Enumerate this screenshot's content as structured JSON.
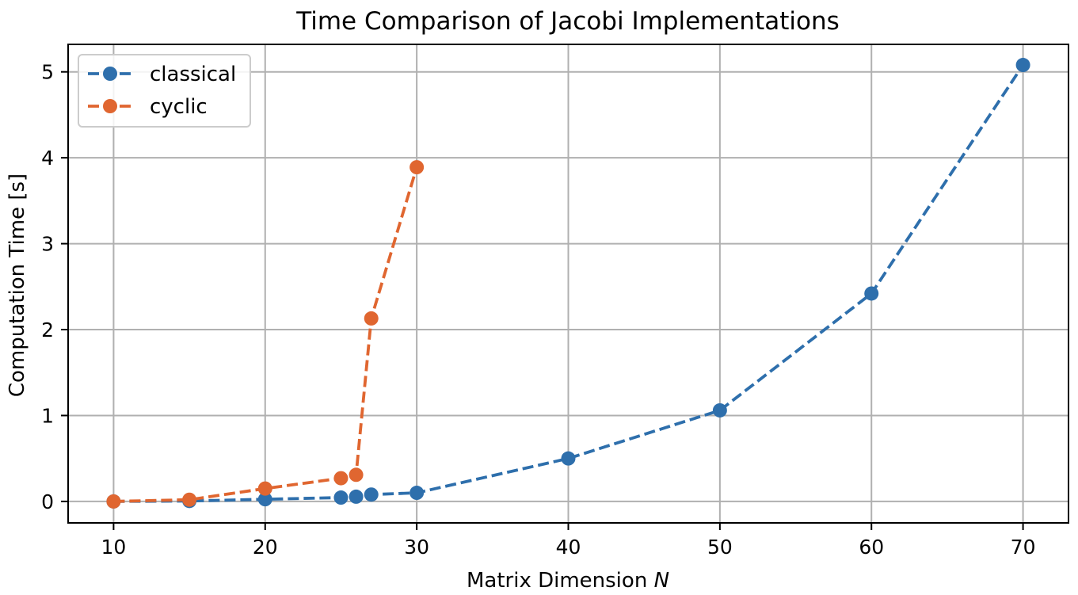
{
  "chart_data": {
    "type": "line",
    "title": "Time Comparison of Jacobi Implementations",
    "xlabel": "Matrix Dimension",
    "xlabel_symbol": "N",
    "ylabel": "Computation Time [s]",
    "xlim": [
      7,
      73
    ],
    "ylim": [
      -0.25,
      5.32
    ],
    "xticks": [
      10,
      20,
      30,
      40,
      50,
      60,
      70
    ],
    "yticks": [
      0,
      1,
      2,
      3,
      4,
      5
    ],
    "grid": true,
    "legend_position": "upper-left",
    "series": [
      {
        "name": "classical",
        "color": "#2e6fac",
        "linestyle": "dashed",
        "marker": "circle",
        "x": [
          10,
          15,
          20,
          25,
          26,
          27,
          30,
          40,
          50,
          60,
          70
        ],
        "y": [
          0.0,
          0.005,
          0.025,
          0.045,
          0.055,
          0.08,
          0.1,
          0.5,
          1.06,
          2.42,
          5.08
        ]
      },
      {
        "name": "cyclic",
        "color": "#e06630",
        "linestyle": "dashed",
        "marker": "circle",
        "x": [
          10,
          15,
          20,
          25,
          26,
          27,
          30
        ],
        "y": [
          0.0,
          0.02,
          0.15,
          0.27,
          0.31,
          2.13,
          3.89
        ]
      }
    ]
  }
}
